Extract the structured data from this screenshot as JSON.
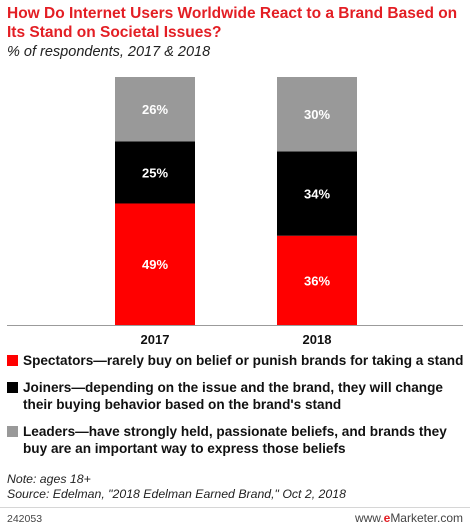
{
  "chart_data": {
    "type": "bar",
    "stacked": true,
    "title": "How Do Internet Users Worldwide React to a Brand Based on Its Stand on Societal Issues?",
    "subtitle": "% of respondents, 2017 & 2018",
    "categories": [
      "2017",
      "2018"
    ],
    "series": [
      {
        "name": "Spectators—rarely buy on belief or punish brands for taking a stand",
        "values": [
          49,
          36
        ],
        "labels": [
          "49%",
          "36%"
        ],
        "color": "#ff0000"
      },
      {
        "name": "Joiners—depending on the issue and the brand, they will change their buying behavior based on the brand's stand",
        "values": [
          25,
          34
        ],
        "labels": [
          "25%",
          "34%"
        ],
        "color": "#000000"
      },
      {
        "name": "Leaders—have strongly held, passionate beliefs, and brands they buy are an important way to express those beliefs",
        "values": [
          26,
          30
        ],
        "labels": [
          "26%",
          "30%"
        ],
        "color": "#999999"
      }
    ],
    "ylim": [
      0,
      100
    ],
    "grid": false,
    "legend_position": "bottom"
  },
  "note": "Note: ages 18+",
  "source": "Source: Edelman, \"2018 Edelman Earned Brand,\" Oct 2, 2018",
  "chart_id": "242053",
  "brand": {
    "prefix": "www.",
    "e": "e",
    "rest": "Marketer.com"
  },
  "colors": {
    "title": "#e31e24",
    "axis": "#9b9b9b"
  }
}
